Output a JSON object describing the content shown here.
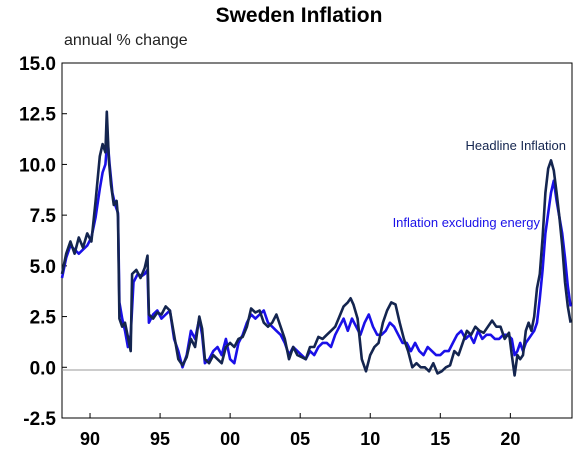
{
  "chart_data": {
    "type": "line",
    "title": "Sweden Inflation",
    "ylabel": "annual % change",
    "xlabel": "",
    "ylim": [
      -2.5,
      15.0
    ],
    "xlim": [
      1988.0,
      2024.4
    ],
    "yticks": [
      "15.0",
      "12.5",
      "10.0",
      "7.5",
      "5.0",
      "2.5",
      "0.0",
      "-2.5"
    ],
    "yticks_values": [
      15.0,
      12.5,
      10.0,
      7.5,
      5.0,
      2.5,
      0.0,
      -2.5
    ],
    "xticks": [
      "90",
      "95",
      "00",
      "05",
      "10",
      "15",
      "20"
    ],
    "xticks_values": [
      1990,
      1995,
      2000,
      2005,
      2010,
      2015,
      2020
    ],
    "grid": false,
    "zero_line": true,
    "legend": "inline annotations",
    "series": [
      {
        "name": "Headline Inflation",
        "color": "#14254f",
        "points": [
          [
            1988.0,
            4.6
          ],
          [
            1988.3,
            5.6
          ],
          [
            1988.6,
            6.2
          ],
          [
            1988.9,
            5.6
          ],
          [
            1989.2,
            6.4
          ],
          [
            1989.5,
            5.9
          ],
          [
            1989.8,
            6.6
          ],
          [
            1990.1,
            6.2
          ],
          [
            1990.4,
            8.2
          ],
          [
            1990.7,
            10.4
          ],
          [
            1990.9,
            11.0
          ],
          [
            1991.1,
            10.6
          ],
          [
            1991.2,
            12.6
          ],
          [
            1991.35,
            10.2
          ],
          [
            1991.5,
            9.0
          ],
          [
            1991.7,
            8.0
          ],
          [
            1991.9,
            8.2
          ],
          [
            1992.0,
            7.4
          ],
          [
            1992.1,
            2.4
          ],
          [
            1992.3,
            2.0
          ],
          [
            1992.5,
            2.2
          ],
          [
            1992.7,
            1.5
          ],
          [
            1992.9,
            0.8
          ],
          [
            1993.0,
            4.6
          ],
          [
            1993.3,
            4.8
          ],
          [
            1993.6,
            4.4
          ],
          [
            1993.9,
            4.9
          ],
          [
            1994.1,
            5.5
          ],
          [
            1994.2,
            2.6
          ],
          [
            1994.5,
            2.4
          ],
          [
            1994.8,
            2.7
          ],
          [
            1995.1,
            2.6
          ],
          [
            1995.4,
            3.0
          ],
          [
            1995.7,
            2.8
          ],
          [
            1996.0,
            1.6
          ],
          [
            1996.3,
            0.4
          ],
          [
            1996.6,
            0.1
          ],
          [
            1996.9,
            0.5
          ],
          [
            1997.2,
            1.4
          ],
          [
            1997.5,
            1.0
          ],
          [
            1997.8,
            2.5
          ],
          [
            1998.0,
            1.9
          ],
          [
            1998.2,
            0.4
          ],
          [
            1998.5,
            0.2
          ],
          [
            1998.8,
            0.6
          ],
          [
            1999.1,
            0.4
          ],
          [
            1999.4,
            0.2
          ],
          [
            1999.7,
            1.0
          ],
          [
            2000.0,
            1.2
          ],
          [
            2000.3,
            1.0
          ],
          [
            2000.6,
            1.4
          ],
          [
            2000.9,
            1.5
          ],
          [
            2001.2,
            2.0
          ],
          [
            2001.5,
            2.9
          ],
          [
            2001.8,
            2.7
          ],
          [
            2002.1,
            2.8
          ],
          [
            2002.4,
            2.2
          ],
          [
            2002.7,
            2.0
          ],
          [
            2003.0,
            2.2
          ],
          [
            2003.3,
            2.6
          ],
          [
            2003.6,
            2.0
          ],
          [
            2003.9,
            1.4
          ],
          [
            2004.2,
            0.4
          ],
          [
            2004.5,
            1.0
          ],
          [
            2004.8,
            0.6
          ],
          [
            2005.1,
            0.5
          ],
          [
            2005.4,
            0.4
          ],
          [
            2005.7,
            1.0
          ],
          [
            2006.0,
            1.0
          ],
          [
            2006.3,
            1.5
          ],
          [
            2006.6,
            1.4
          ],
          [
            2006.9,
            1.6
          ],
          [
            2007.2,
            1.8
          ],
          [
            2007.5,
            2.0
          ],
          [
            2007.8,
            2.5
          ],
          [
            2008.1,
            3.0
          ],
          [
            2008.4,
            3.2
          ],
          [
            2008.6,
            3.4
          ],
          [
            2008.8,
            3.1
          ],
          [
            2009.1,
            2.4
          ],
          [
            2009.4,
            0.4
          ],
          [
            2009.7,
            -0.2
          ],
          [
            2010.0,
            0.6
          ],
          [
            2010.3,
            1.0
          ],
          [
            2010.6,
            1.2
          ],
          [
            2010.9,
            2.2
          ],
          [
            2011.2,
            2.8
          ],
          [
            2011.5,
            3.2
          ],
          [
            2011.8,
            3.1
          ],
          [
            2012.1,
            2.2
          ],
          [
            2012.4,
            1.4
          ],
          [
            2012.7,
            0.8
          ],
          [
            2013.0,
            0.0
          ],
          [
            2013.3,
            0.2
          ],
          [
            2013.6,
            0.0
          ],
          [
            2013.9,
            0.0
          ],
          [
            2014.2,
            -0.2
          ],
          [
            2014.5,
            0.2
          ],
          [
            2014.8,
            -0.3
          ],
          [
            2015.1,
            -0.2
          ],
          [
            2015.4,
            0.0
          ],
          [
            2015.7,
            0.1
          ],
          [
            2016.0,
            0.8
          ],
          [
            2016.3,
            0.6
          ],
          [
            2016.6,
            1.2
          ],
          [
            2016.9,
            1.8
          ],
          [
            2017.2,
            1.6
          ],
          [
            2017.5,
            2.0
          ],
          [
            2017.8,
            1.8
          ],
          [
            2018.1,
            1.7
          ],
          [
            2018.4,
            2.0
          ],
          [
            2018.7,
            2.3
          ],
          [
            2019.0,
            2.0
          ],
          [
            2019.3,
            2.0
          ],
          [
            2019.6,
            1.4
          ],
          [
            2019.9,
            1.7
          ],
          [
            2020.1,
            0.6
          ],
          [
            2020.3,
            -0.4
          ],
          [
            2020.5,
            0.6
          ],
          [
            2020.7,
            0.4
          ],
          [
            2020.9,
            0.6
          ],
          [
            2021.1,
            1.8
          ],
          [
            2021.3,
            2.2
          ],
          [
            2021.5,
            1.8
          ],
          [
            2021.7,
            2.5
          ],
          [
            2021.9,
            3.9
          ],
          [
            2022.1,
            4.6
          ],
          [
            2022.3,
            6.4
          ],
          [
            2022.5,
            8.6
          ],
          [
            2022.7,
            9.8
          ],
          [
            2022.9,
            10.2
          ],
          [
            2023.1,
            9.7
          ],
          [
            2023.3,
            8.6
          ],
          [
            2023.5,
            7.4
          ],
          [
            2023.7,
            6.0
          ],
          [
            2023.9,
            4.2
          ],
          [
            2024.1,
            3.0
          ],
          [
            2024.3,
            2.2
          ]
        ]
      },
      {
        "name": "Inflation excluding energy",
        "color": "#1a10e8",
        "points": [
          [
            1988.0,
            4.4
          ],
          [
            1988.3,
            5.4
          ],
          [
            1988.6,
            6.0
          ],
          [
            1988.9,
            5.8
          ],
          [
            1989.2,
            5.6
          ],
          [
            1989.5,
            5.8
          ],
          [
            1989.8,
            6.0
          ],
          [
            1990.1,
            6.4
          ],
          [
            1990.4,
            7.4
          ],
          [
            1990.7,
            8.8
          ],
          [
            1990.9,
            9.6
          ],
          [
            1991.1,
            10.0
          ],
          [
            1991.25,
            11.3
          ],
          [
            1991.4,
            10.0
          ],
          [
            1991.6,
            8.6
          ],
          [
            1991.8,
            8.0
          ],
          [
            1992.0,
            7.6
          ],
          [
            1992.1,
            3.2
          ],
          [
            1992.3,
            2.4
          ],
          [
            1992.5,
            1.8
          ],
          [
            1992.7,
            1.0
          ],
          [
            1992.9,
            1.6
          ],
          [
            1993.1,
            4.2
          ],
          [
            1993.4,
            4.6
          ],
          [
            1993.7,
            4.5
          ],
          [
            1993.9,
            4.6
          ],
          [
            1994.1,
            4.8
          ],
          [
            1994.2,
            2.2
          ],
          [
            1994.5,
            2.6
          ],
          [
            1994.8,
            2.8
          ],
          [
            1995.1,
            2.4
          ],
          [
            1995.4,
            2.6
          ],
          [
            1995.7,
            2.8
          ],
          [
            1996.0,
            1.4
          ],
          [
            1996.3,
            0.8
          ],
          [
            1996.6,
            0.0
          ],
          [
            1996.9,
            0.6
          ],
          [
            1997.2,
            1.8
          ],
          [
            1997.5,
            1.4
          ],
          [
            1997.8,
            2.4
          ],
          [
            1998.0,
            1.6
          ],
          [
            1998.2,
            0.2
          ],
          [
            1998.5,
            0.4
          ],
          [
            1998.8,
            0.8
          ],
          [
            1999.1,
            1.0
          ],
          [
            1999.4,
            0.6
          ],
          [
            1999.7,
            1.4
          ],
          [
            2000.0,
            0.4
          ],
          [
            2000.3,
            0.2
          ],
          [
            2000.6,
            1.2
          ],
          [
            2000.9,
            1.6
          ],
          [
            2001.2,
            2.2
          ],
          [
            2001.5,
            2.6
          ],
          [
            2001.8,
            2.4
          ],
          [
            2002.1,
            2.6
          ],
          [
            2002.4,
            2.8
          ],
          [
            2002.7,
            2.2
          ],
          [
            2003.0,
            2.0
          ],
          [
            2003.3,
            1.8
          ],
          [
            2003.6,
            1.6
          ],
          [
            2003.9,
            1.2
          ],
          [
            2004.2,
            0.6
          ],
          [
            2004.5,
            1.0
          ],
          [
            2004.8,
            0.8
          ],
          [
            2005.1,
            0.6
          ],
          [
            2005.4,
            0.4
          ],
          [
            2005.7,
            0.8
          ],
          [
            2006.0,
            0.6
          ],
          [
            2006.3,
            1.0
          ],
          [
            2006.6,
            1.2
          ],
          [
            2006.9,
            1.2
          ],
          [
            2007.2,
            1.0
          ],
          [
            2007.5,
            1.6
          ],
          [
            2007.8,
            2.0
          ],
          [
            2008.1,
            2.4
          ],
          [
            2008.4,
            1.8
          ],
          [
            2008.7,
            2.4
          ],
          [
            2009.0,
            2.0
          ],
          [
            2009.3,
            1.6
          ],
          [
            2009.6,
            2.2
          ],
          [
            2009.9,
            2.6
          ],
          [
            2010.2,
            2.0
          ],
          [
            2010.5,
            1.6
          ],
          [
            2010.8,
            1.6
          ],
          [
            2011.1,
            1.8
          ],
          [
            2011.4,
            2.2
          ],
          [
            2011.7,
            2.0
          ],
          [
            2012.0,
            1.6
          ],
          [
            2012.3,
            1.2
          ],
          [
            2012.6,
            1.2
          ],
          [
            2012.9,
            0.8
          ],
          [
            2013.2,
            1.2
          ],
          [
            2013.5,
            0.8
          ],
          [
            2013.8,
            0.6
          ],
          [
            2014.1,
            1.0
          ],
          [
            2014.4,
            0.8
          ],
          [
            2014.7,
            0.6
          ],
          [
            2015.0,
            0.6
          ],
          [
            2015.3,
            0.8
          ],
          [
            2015.6,
            0.8
          ],
          [
            2015.9,
            1.2
          ],
          [
            2016.2,
            1.6
          ],
          [
            2016.5,
            1.8
          ],
          [
            2016.8,
            1.4
          ],
          [
            2017.1,
            1.6
          ],
          [
            2017.4,
            1.2
          ],
          [
            2017.7,
            1.8
          ],
          [
            2018.0,
            1.4
          ],
          [
            2018.3,
            1.6
          ],
          [
            2018.6,
            1.6
          ],
          [
            2018.9,
            1.4
          ],
          [
            2019.2,
            1.4
          ],
          [
            2019.5,
            1.6
          ],
          [
            2019.8,
            1.6
          ],
          [
            2020.1,
            1.4
          ],
          [
            2020.3,
            0.6
          ],
          [
            2020.5,
            0.8
          ],
          [
            2020.7,
            1.2
          ],
          [
            2020.9,
            0.8
          ],
          [
            2021.1,
            1.2
          ],
          [
            2021.3,
            1.4
          ],
          [
            2021.5,
            1.6
          ],
          [
            2021.7,
            1.8
          ],
          [
            2021.9,
            2.2
          ],
          [
            2022.1,
            3.4
          ],
          [
            2022.3,
            4.8
          ],
          [
            2022.5,
            6.6
          ],
          [
            2022.7,
            7.6
          ],
          [
            2022.9,
            8.6
          ],
          [
            2023.1,
            9.2
          ],
          [
            2023.3,
            8.2
          ],
          [
            2023.5,
            7.4
          ],
          [
            2023.7,
            6.6
          ],
          [
            2023.9,
            5.4
          ],
          [
            2024.1,
            4.0
          ],
          [
            2024.3,
            3.0
          ]
        ]
      }
    ],
    "annotations": [
      {
        "text": "Headline Inflation",
        "series": "Headline Inflation"
      },
      {
        "text": "Inflation excluding energy",
        "series": "Inflation excluding energy"
      }
    ]
  }
}
